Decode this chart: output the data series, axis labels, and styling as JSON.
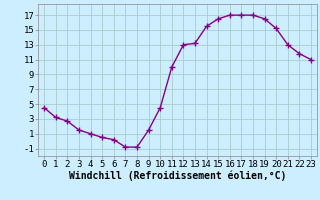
{
  "x": [
    0,
    1,
    2,
    3,
    4,
    5,
    6,
    7,
    8,
    9,
    10,
    11,
    12,
    13,
    14,
    15,
    16,
    17,
    18,
    19,
    20,
    21,
    22,
    23
  ],
  "y": [
    4.5,
    3.2,
    2.7,
    1.5,
    1.0,
    0.5,
    0.2,
    -0.8,
    -0.8,
    1.5,
    4.5,
    10.0,
    13.0,
    13.2,
    15.5,
    16.5,
    17.0,
    17.0,
    17.0,
    16.5,
    15.2,
    13.0,
    11.8,
    11.0
  ],
  "line_color": "#880088",
  "marker": "+",
  "marker_size": 4,
  "bg_color": "#cceeff",
  "grid_color": "#aacccc",
  "xlabel": "Windchill (Refroidissement éolien,°C)",
  "xlabel_fontsize": 7,
  "yticks": [
    -1,
    1,
    3,
    5,
    7,
    9,
    11,
    13,
    15,
    17
  ],
  "xticks": [
    0,
    1,
    2,
    3,
    4,
    5,
    6,
    7,
    8,
    9,
    10,
    11,
    12,
    13,
    14,
    15,
    16,
    17,
    18,
    19,
    20,
    21,
    22,
    23
  ],
  "ylim": [
    -2,
    18.5
  ],
  "xlim": [
    -0.5,
    23.5
  ],
  "tick_fontsize": 6.5,
  "linewidth": 1.0
}
